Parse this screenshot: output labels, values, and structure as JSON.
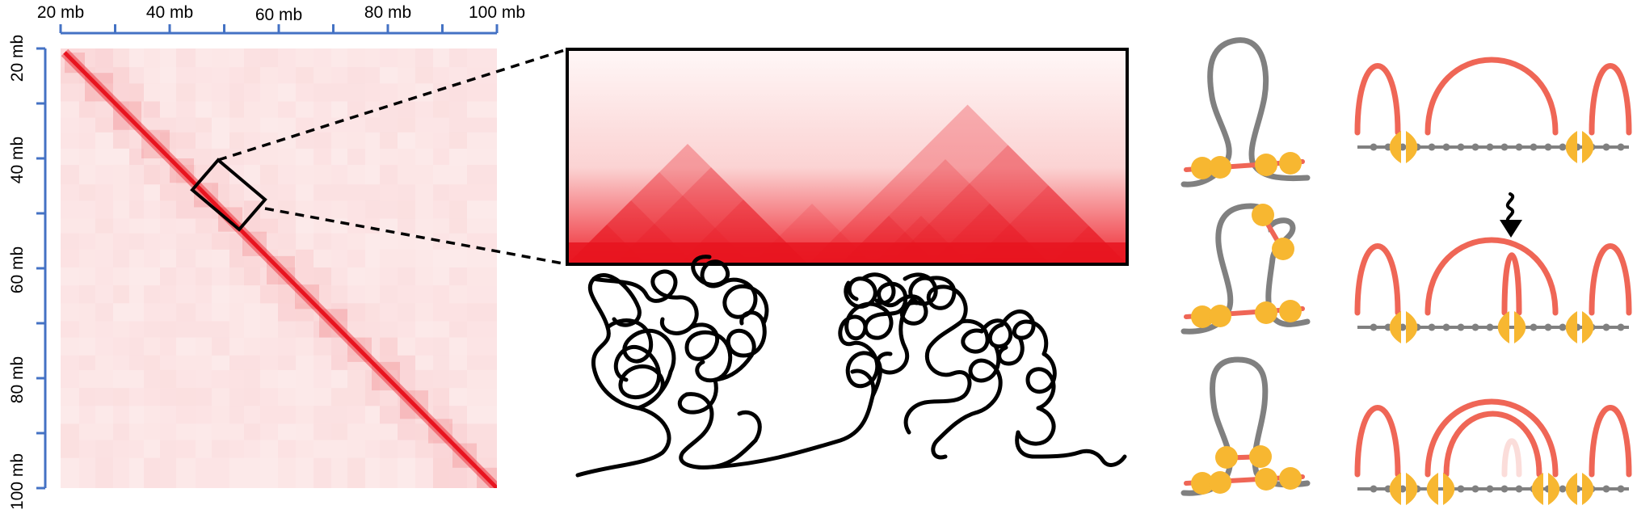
{
  "axes": {
    "top_ticks": [
      "20 mb",
      "40 mb",
      "60 mb",
      "80 mb",
      "100 mb"
    ],
    "left_ticks": [
      "20 mb",
      "40 mb",
      "60 mb",
      "80 mb",
      "100 mb"
    ],
    "axis_color": "#4472c4"
  },
  "colors": {
    "contact_map": "#e8141f",
    "chromatin": "#000000",
    "cohesin": "#f7b731",
    "cohesin_ring": "#ef6656",
    "dna": "#808080",
    "arc": "#ef6656",
    "arrow": "#000000"
  },
  "icons": [
    "contact-heatmap",
    "zoom-inset",
    "chromatin-fiber",
    "loop-extrusion-diagrams",
    "tad-arcs",
    "wavy-arrow-icon"
  ]
}
